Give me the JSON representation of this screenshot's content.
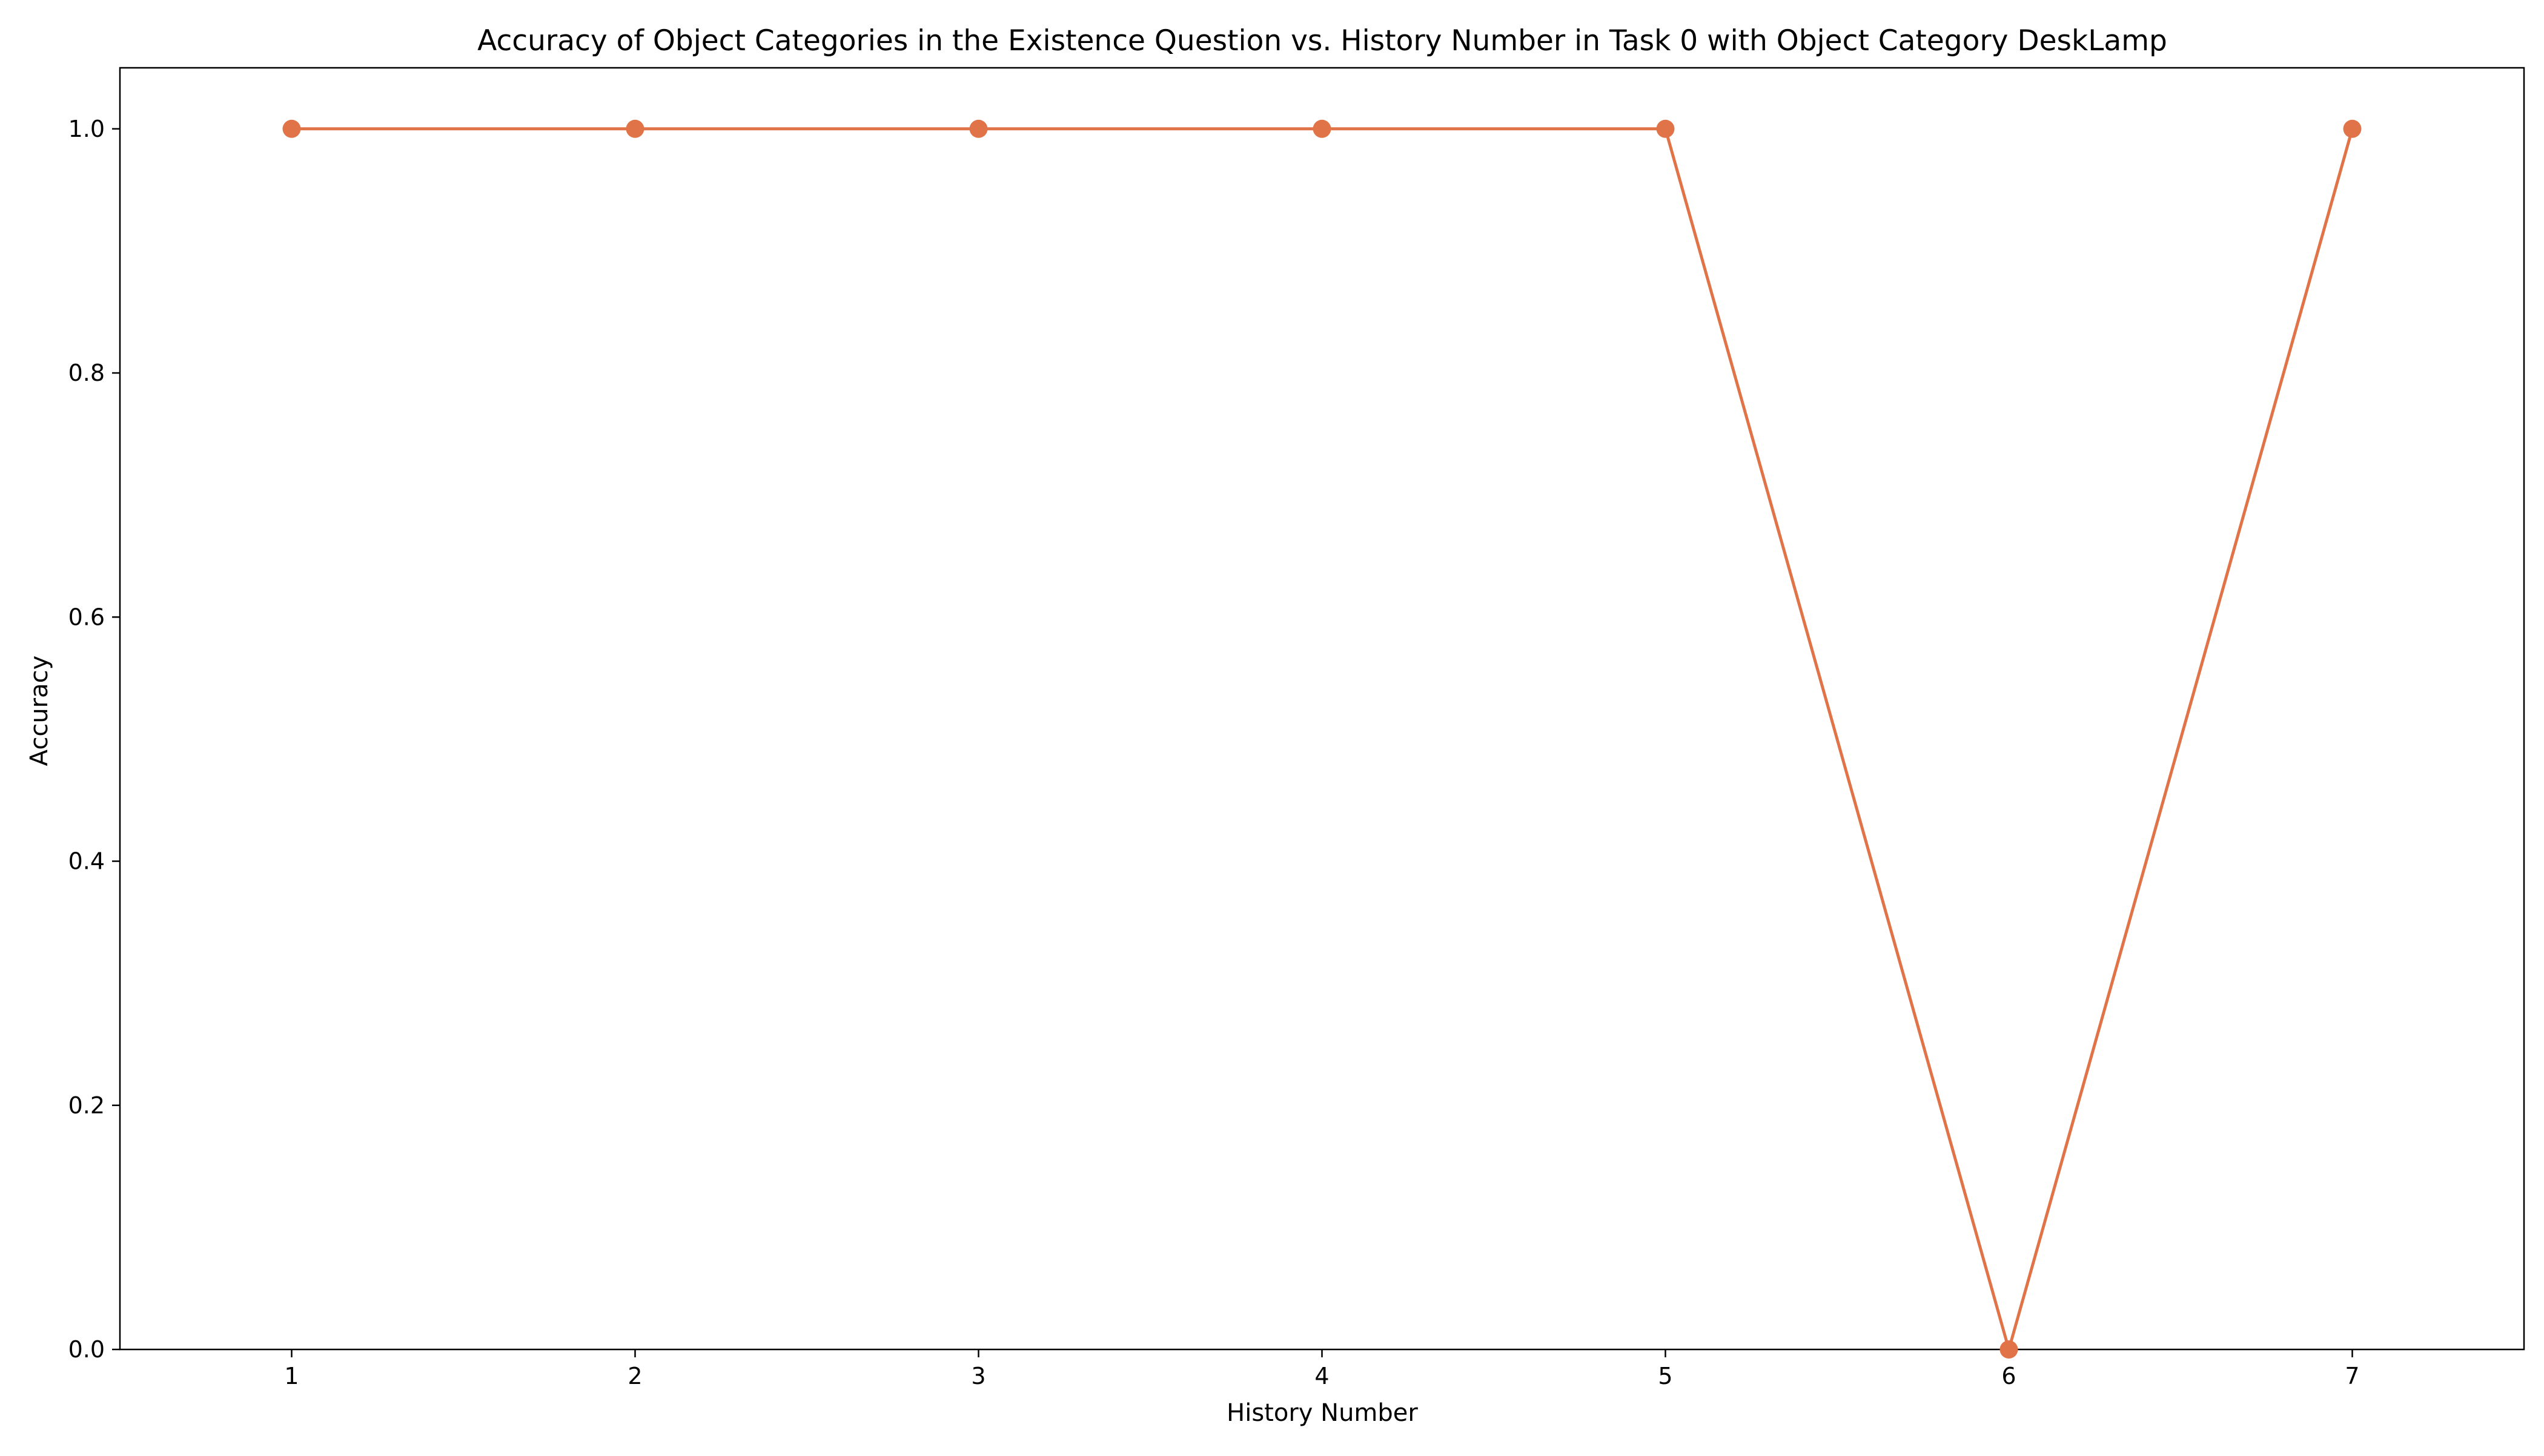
{
  "chart_data": {
    "type": "line",
    "title": "Accuracy of Object Categories in the Existence Question vs. History Number in Task 0 with Object Category DeskLamp",
    "xlabel": "History Number",
    "ylabel": "Accuracy",
    "x": [
      1,
      2,
      3,
      4,
      5,
      6,
      7
    ],
    "series": [
      {
        "values": [
          1.0,
          1.0,
          1.0,
          1.0,
          1.0,
          0.0,
          1.0
        ],
        "color": "#e07448",
        "marker": "circle"
      }
    ],
    "xlim": [
      0.5,
      7.5
    ],
    "ylim": [
      0.0,
      1.05
    ],
    "xticks": [
      "1",
      "2",
      "3",
      "4",
      "5",
      "6",
      "7"
    ],
    "yticks": [
      "0.0",
      "0.2",
      "0.4",
      "0.6",
      "0.8",
      "1.0"
    ],
    "grid": false,
    "legend": "none"
  }
}
